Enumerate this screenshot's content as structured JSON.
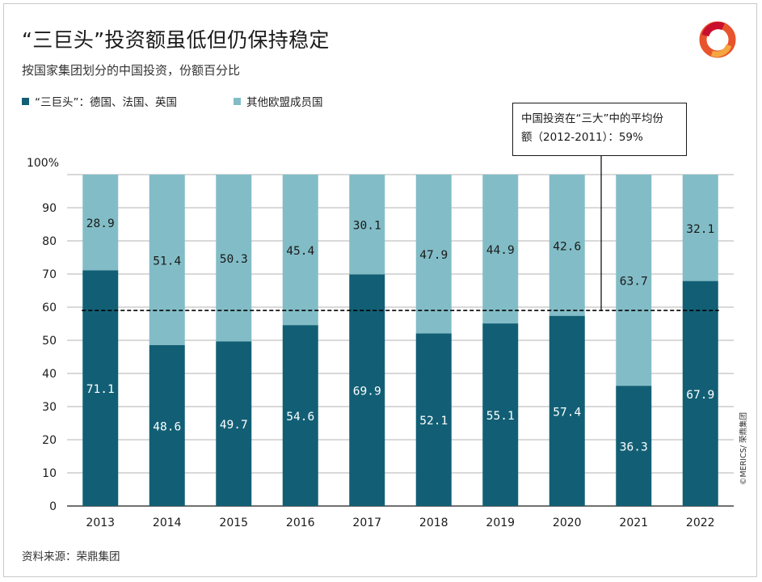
{
  "header": {
    "title": "“三巨头”投资额虽低但仍保持稳定",
    "subtitle": "按国家集团划分的中国投资，份额百分比"
  },
  "legend": [
    {
      "label": "“三巨头”：德国、法国、英国",
      "color": "#125f75"
    },
    {
      "label": "其他欧盟成员国",
      "color": "#82bdc7"
    }
  ],
  "annotation": {
    "line1": "中国投资在“三大”中的平均份",
    "line2": "额（2012-2011）：59%"
  },
  "footer": {
    "source": "资料来源：荣鼎集团",
    "credit": "©MERICS/ 荣鼎集团"
  },
  "chart_data": {
    "type": "bar",
    "stacked": true,
    "categories": [
      "2013",
      "2014",
      "2015",
      "2016",
      "2017",
      "2018",
      "2019",
      "2020",
      "2021",
      "2022"
    ],
    "series": [
      {
        "name": "“三巨头”：德国、法国、英国",
        "color": "#125f75",
        "values": [
          71.1,
          48.6,
          49.7,
          54.6,
          69.9,
          52.1,
          55.1,
          57.4,
          36.3,
          67.9
        ]
      },
      {
        "name": "其他欧盟成员国",
        "color": "#82bdc7",
        "values": [
          28.9,
          51.4,
          50.3,
          45.4,
          30.1,
          47.9,
          44.9,
          42.6,
          63.7,
          32.1
        ]
      }
    ],
    "yticks": [
      "0",
      "10",
      "20",
      "30",
      "40",
      "50",
      "60",
      "70",
      "80",
      "90",
      "100%"
    ],
    "ylim": [
      0,
      100
    ],
    "reference_line": {
      "value": 59,
      "style": "dashed"
    },
    "grid": true,
    "legend_position": "top-left"
  }
}
